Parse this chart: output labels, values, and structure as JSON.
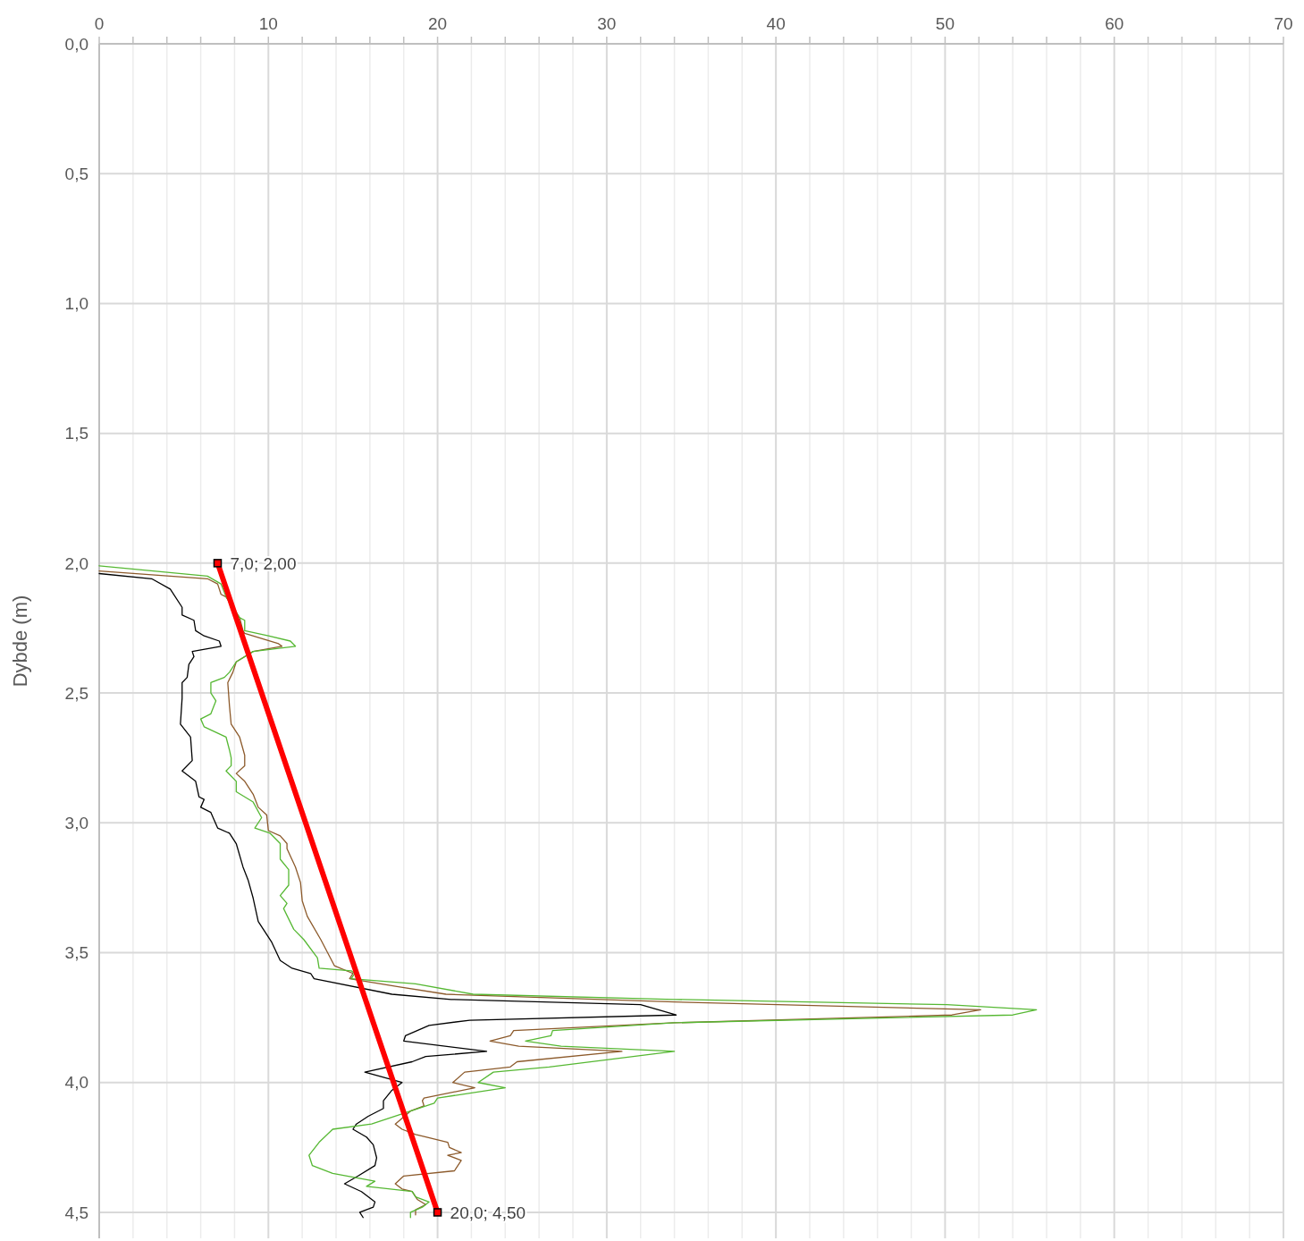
{
  "chart_data": {
    "type": "line",
    "ylabel": "Dybde (m)",
    "xlim": [
      0,
      70
    ],
    "ylim": [
      4.6,
      0
    ],
    "xticks": [
      0,
      {
        "value": 2,
        "label": null
      },
      {
        "value": 4,
        "label": null
      },
      {
        "value": 6,
        "label": null
      },
      {
        "value": 8,
        "label": null
      },
      10,
      {
        "value": 12,
        "label": null
      },
      {
        "value": 14,
        "label": null
      },
      {
        "value": 16,
        "label": null
      },
      {
        "value": 18,
        "label": null
      },
      20,
      {
        "value": 22,
        "label": null
      },
      {
        "value": 24,
        "label": null
      },
      {
        "value": 26,
        "label": null
      },
      {
        "value": 28,
        "label": null
      },
      30,
      {
        "value": 32,
        "label": null
      },
      {
        "value": 34,
        "label": null
      },
      {
        "value": 36,
        "label": null
      },
      {
        "value": 38,
        "label": null
      },
      40,
      {
        "value": 42,
        "label": null
      },
      {
        "value": 44,
        "label": null
      },
      {
        "value": 46,
        "label": null
      },
      {
        "value": 48,
        "label": null
      },
      50,
      {
        "value": 52,
        "label": null
      },
      {
        "value": 54,
        "label": null
      },
      {
        "value": 56,
        "label": null
      },
      {
        "value": 58,
        "label": null
      },
      60,
      {
        "value": 62,
        "label": null
      },
      {
        "value": 64,
        "label": null
      },
      {
        "value": 66,
        "label": null
      },
      {
        "value": 68,
        "label": null
      },
      70
    ],
    "yticks": [
      {
        "value": 0,
        "label": "0,0"
      },
      {
        "value": 0.5,
        "label": "0,5"
      },
      {
        "value": 1,
        "label": "1,0"
      },
      {
        "value": 1.5,
        "label": "1,5"
      },
      {
        "value": 2,
        "label": "2,0"
      },
      {
        "value": 2.5,
        "label": "2,5"
      },
      {
        "value": 3,
        "label": "3,0"
      },
      {
        "value": 3.5,
        "label": "3,5"
      },
      {
        "value": 4,
        "label": "4,0"
      },
      {
        "value": 4.5,
        "label": "4,5"
      }
    ],
    "grid": true,
    "marker": "none",
    "line_style": "solid",
    "series": [
      {
        "color": "#000000",
        "x": [
          0,
          3.1,
          4.2,
          4.9,
          4.9,
          5.6,
          5.7,
          6.2,
          7.1,
          7.2,
          5.5,
          5.6,
          5.3,
          5.2,
          4.9,
          4.9,
          4.8,
          5.4,
          5.5,
          4.9,
          5.7,
          5.9,
          6.2,
          6.0,
          6.6,
          7.0,
          7.7,
          8.1,
          8.5,
          8.8,
          9.1,
          9.4,
          10.2,
          10.7,
          11.4,
          12.5,
          12.7,
          17.3,
          20.8,
          32.0,
          34.1,
          21.9,
          19.5,
          18.1,
          18.0,
          22.9,
          19.3,
          18.5,
          15.7,
          17.9,
          17.3,
          16.8,
          16.8,
          15.9,
          15.2,
          15.0,
          15.8,
          16.2,
          16.4,
          16.3,
          15.3,
          14.5,
          15.5,
          16.3,
          16.2,
          15.4,
          15.6
        ],
        "values": [
          2.04,
          2.06,
          2.1,
          2.17,
          2.2,
          2.22,
          2.26,
          2.28,
          2.3,
          2.32,
          2.34,
          2.36,
          2.39,
          2.44,
          2.46,
          2.52,
          2.62,
          2.67,
          2.76,
          2.8,
          2.84,
          2.9,
          2.91,
          2.94,
          2.96,
          3.02,
          3.04,
          3.08,
          3.17,
          3.22,
          3.29,
          3.38,
          3.46,
          3.53,
          3.56,
          3.58,
          3.6,
          3.66,
          3.68,
          3.7,
          3.74,
          3.76,
          3.78,
          3.82,
          3.84,
          3.88,
          3.9,
          3.92,
          3.96,
          4.0,
          4.03,
          4.07,
          4.1,
          4.13,
          4.16,
          4.18,
          4.21,
          4.24,
          4.29,
          4.32,
          4.36,
          4.39,
          4.42,
          4.46,
          4.48,
          4.5,
          4.52
        ]
      },
      {
        "color": "#8c5a2b",
        "x": [
          0,
          6.4,
          7.0,
          7.2,
          7.5,
          8.3,
          8.5,
          8.6,
          10.6,
          10.8,
          9.1,
          8.1,
          7.9,
          7.6,
          7.7,
          7.8,
          8.3,
          8.6,
          8.6,
          8.1,
          8.6,
          9.1,
          9.4,
          9.9,
          10.0,
          10.7,
          11.1,
          11.1,
          11.6,
          11.9,
          12.0,
          12.3,
          13.1,
          13.9,
          15.0,
          14.8,
          17.6,
          20.5,
          34.0,
          52.1,
          50.4,
          34.0,
          24.5,
          24.3,
          23.1,
          24.8,
          30.9,
          24.7,
          24.3,
          21.6,
          20.9,
          22.2,
          19.2,
          19.1,
          19.2,
          18.4,
          17.5,
          17.9,
          18.7,
          20.6,
          20.7,
          21.4,
          20.6,
          21.4,
          21.0,
          18.0,
          17.5,
          17.9,
          18.5,
          18.8,
          19.3,
          18.7,
          18.7
        ],
        "values": [
          2.03,
          2.06,
          2.08,
          2.12,
          2.13,
          2.21,
          2.26,
          2.27,
          2.31,
          2.32,
          2.34,
          2.38,
          2.42,
          2.46,
          2.55,
          2.62,
          2.67,
          2.74,
          2.78,
          2.81,
          2.84,
          2.89,
          2.94,
          2.97,
          3.03,
          3.05,
          3.08,
          3.1,
          3.17,
          3.23,
          3.3,
          3.36,
          3.45,
          3.55,
          3.58,
          3.6,
          3.63,
          3.66,
          3.69,
          3.72,
          3.74,
          3.77,
          3.8,
          3.82,
          3.84,
          3.86,
          3.88,
          3.92,
          3.94,
          3.96,
          4.0,
          4.02,
          4.06,
          4.07,
          4.09,
          4.11,
          4.16,
          4.18,
          4.2,
          4.23,
          4.25,
          4.27,
          4.28,
          4.3,
          4.34,
          4.36,
          4.39,
          4.41,
          4.42,
          4.45,
          4.47,
          4.49,
          4.51
        ]
      },
      {
        "color": "#56b833",
        "x": [
          0,
          6.4,
          7.2,
          7.5,
          8.3,
          8.6,
          8.6,
          10.0,
          11.3,
          11.6,
          9.1,
          8.1,
          7.7,
          7.4,
          6.6,
          6.6,
          6.9,
          6.6,
          6.0,
          6.2,
          7.5,
          7.7,
          7.8,
          7.8,
          7.5,
          8.1,
          8.1,
          9.1,
          9.6,
          9.2,
          10.1,
          10.7,
          10.7,
          11.2,
          11.2,
          10.7,
          11.1,
          10.9,
          11.5,
          12.1,
          12.9,
          13.0,
          14.9,
          15.1,
          14.9,
          18.7,
          22.1,
          34.0,
          50.1,
          55.4,
          54.0,
          34.0,
          26.8,
          26.7,
          25.2,
          27.3,
          34.0,
          26.6,
          23.3,
          22.4,
          24.0,
          20.0,
          19.8,
          16.1,
          13.8,
          13.0,
          12.4,
          12.6,
          13.8,
          16.3,
          15.8,
          18.5,
          18.7,
          19.5,
          19.1,
          18.4,
          18.4
        ],
        "values": [
          2.01,
          2.05,
          2.08,
          2.13,
          2.21,
          2.22,
          2.26,
          2.28,
          2.3,
          2.32,
          2.34,
          2.38,
          2.42,
          2.44,
          2.46,
          2.5,
          2.53,
          2.58,
          2.6,
          2.63,
          2.67,
          2.72,
          2.75,
          2.78,
          2.8,
          2.84,
          2.88,
          2.92,
          2.98,
          3.02,
          3.04,
          3.08,
          3.14,
          3.18,
          3.24,
          3.28,
          3.31,
          3.33,
          3.41,
          3.45,
          3.52,
          3.56,
          3.57,
          3.58,
          3.6,
          3.62,
          3.66,
          3.68,
          3.7,
          3.72,
          3.74,
          3.77,
          3.8,
          3.82,
          3.84,
          3.86,
          3.88,
          3.94,
          3.96,
          4.0,
          4.02,
          4.06,
          4.08,
          4.16,
          4.18,
          4.23,
          4.28,
          4.32,
          4.35,
          4.38,
          4.4,
          4.42,
          4.44,
          4.46,
          4.48,
          4.5,
          4.52
        ]
      },
      {
        "color": "#ff0000",
        "marker": "square",
        "x": [
          7.0,
          20.0
        ],
        "values": [
          2.0,
          4.5
        ],
        "value_labels": [
          "7,0; 2,00",
          "20,0; 4,50"
        ]
      }
    ]
  }
}
